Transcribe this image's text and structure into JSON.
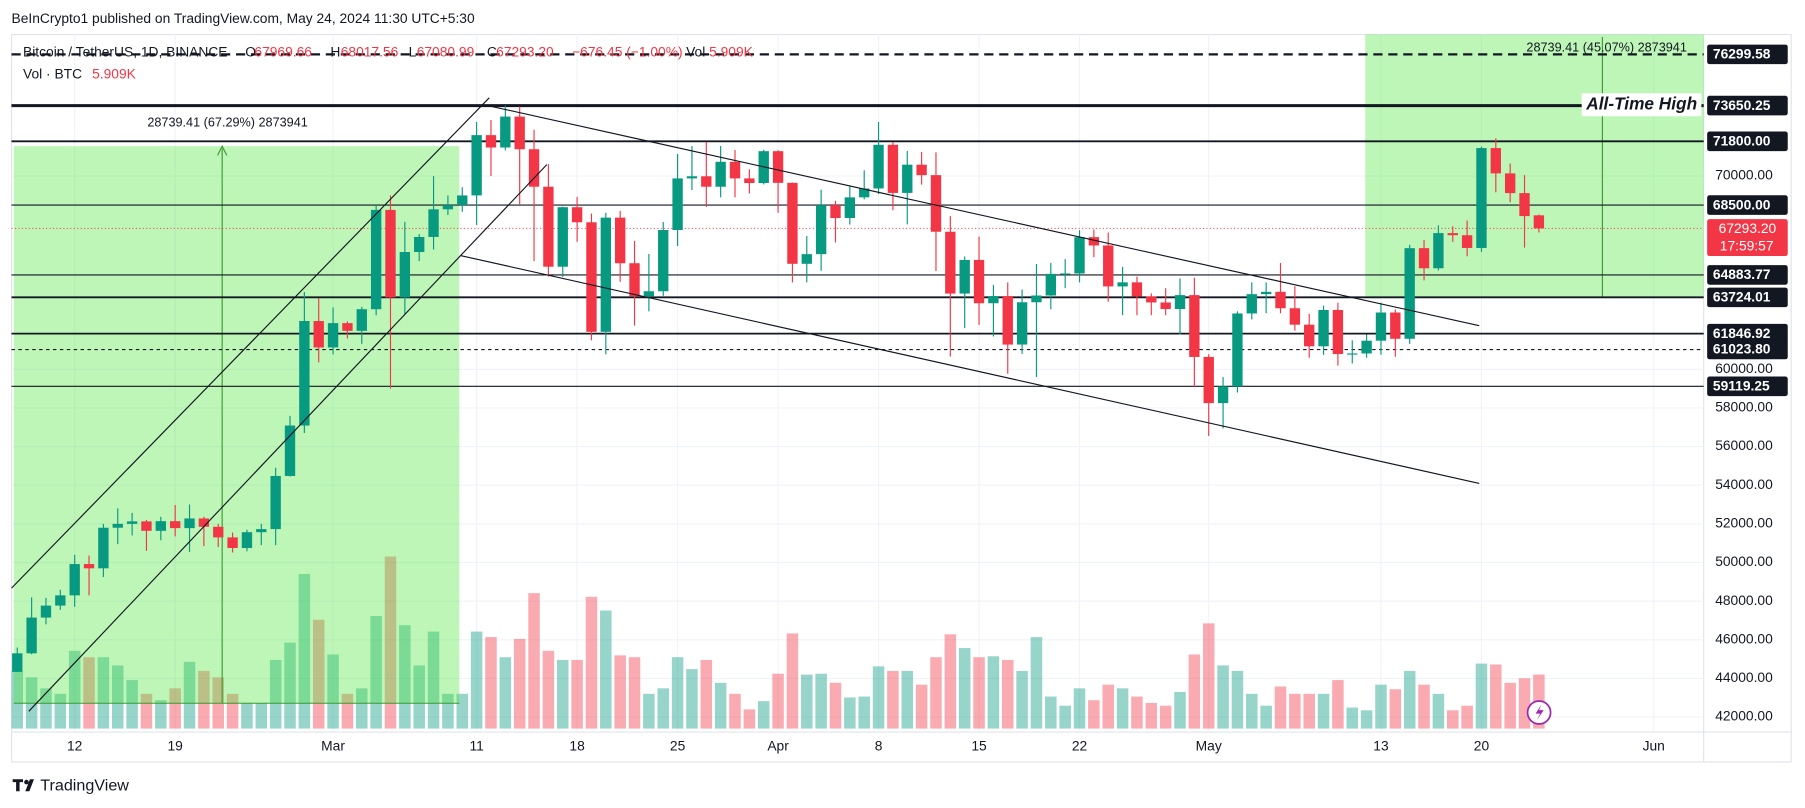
{
  "published": "BeInCrypto1 published on TradingView.com, May 24, 2024 11:30 UTC+5:30",
  "footer": "TradingView",
  "chart_data": {
    "type": "candlestick",
    "symbol": "Bitcoin / TetherUS, 1D, BINANCE",
    "legend": [
      {
        "key": "O",
        "text": "67969.66"
      },
      {
        "key": "H",
        "text": "68017.56"
      },
      {
        "key": "L",
        "text": "67080.99"
      },
      {
        "key": "C",
        "text": "67293.20"
      },
      {
        "key": "",
        "text": "−676.45 (−1.00%)"
      },
      {
        "key": "Vol",
        "text": "5.909K"
      }
    ],
    "volume_legend": {
      "key": "Vol · BTC",
      "text": "5.909K"
    },
    "up_color": "#089981",
    "down_color": "#f23645",
    "grid": true,
    "categories": [
      null,
      null,
      null,
      null,
      "12",
      null,
      null,
      null,
      null,
      null,
      null,
      "19",
      null,
      null,
      null,
      null,
      null,
      null,
      null,
      null,
      null,
      null,
      "Mar",
      null,
      null,
      null,
      null,
      null,
      null,
      null,
      null,
      null,
      "11",
      null,
      null,
      null,
      null,
      null,
      null,
      "18",
      null,
      null,
      null,
      null,
      null,
      null,
      "25",
      null,
      null,
      null,
      null,
      null,
      null,
      "Apr",
      null,
      null,
      null,
      null,
      null,
      null,
      "8",
      null,
      null,
      null,
      null,
      null,
      null,
      "15",
      null,
      null,
      null,
      null,
      null,
      null,
      "22",
      null,
      null,
      null,
      null,
      null,
      null,
      null,
      null,
      "May",
      null,
      null,
      null,
      null,
      null,
      null,
      null,
      null,
      null,
      null,
      null,
      "13",
      null,
      null,
      null,
      null,
      null,
      null,
      "20",
      null,
      null,
      null,
      null,
      null,
      null,
      null,
      null,
      null,
      null,
      null,
      "Jun"
    ],
    "open": [
      44340,
      45300,
      47150,
      47770,
      48300,
      49920,
      49700,
      51800,
      52000,
      52130,
      51640,
      52140,
      51780,
      52280,
      51850,
      51300,
      50750,
      51570,
      51730,
      54480,
      57090,
      62500,
      61130,
      62390,
      61990,
      63110,
      68250,
      63720,
      66070,
      66850,
      68280,
      68500,
      69000,
      72120,
      71480,
      73080,
      71390,
      69450,
      65310,
      68390,
      67610,
      61940,
      67850,
      65490,
      63780,
      64040,
      67210,
      69880,
      69990,
      69450,
      70740,
      69880,
      69640,
      71290,
      69650,
      65460,
      65960,
      68500,
      67830,
      68900,
      69360,
      71620,
      69130,
      70590,
      70050,
      67120,
      63920,
      65660,
      63420,
      63790,
      61280,
      63470,
      63820,
      64940,
      64960,
      66840,
      66410,
      64290,
      64500,
      63770,
      63460,
      63120,
      63840,
      60640,
      58250,
      59120,
      62890,
      63890,
      64010,
      63160,
      62310,
      61190,
      63070,
      60790,
      60820,
      61480,
      62940,
      61580,
      66270,
      65230,
      67050,
      66940,
      66280,
      71450,
      70140,
      69120,
      67969.66,
      null,
      null,
      null,
      null,
      null,
      null,
      null,
      null
    ],
    "high": [
      45600,
      48200,
      48170,
      48590,
      50400,
      50360,
      52000,
      52800,
      52570,
      52200,
      52370,
      52980,
      53000,
      52370,
      52000,
      51550,
      51700,
      52000,
      54910,
      57590,
      64000,
      63680,
      63200,
      62480,
      63230,
      68500,
      69000,
      67630,
      67000,
      70000,
      69000,
      69420,
      72800,
      72900,
      73650,
      73600,
      72400,
      70620,
      68420,
      68920,
      68060,
      68100,
      68200,
      66650,
      65970,
      67630,
      71150,
      71550,
      71770,
      71560,
      71350,
      70350,
      71360,
      71340,
      69670,
      66900,
      69300,
      68720,
      69500,
      70300,
      72800,
      71760,
      71300,
      71250,
      71230,
      67930,
      65840,
      66870,
      64370,
      64500,
      64130,
      65450,
      65500,
      65700,
      67200,
      67230,
      67080,
      65300,
      64800,
      63930,
      64200,
      64700,
      64740,
      60780,
      59600,
      63000,
      64500,
      64500,
      65500,
      64300,
      62870,
      63300,
      63450,
      61500,
      61800,
      63450,
      63100,
      66450,
      66700,
      67450,
      67400,
      67700,
      71520,
      71950,
      70650,
      70050,
      68017.56,
      null,
      null,
      null,
      null,
      null,
      null,
      null,
      null
    ],
    "low": [
      44330,
      45250,
      46800,
      47550,
      47710,
      48300,
      49250,
      50950,
      51400,
      50600,
      51150,
      51350,
      50550,
      50850,
      50800,
      50520,
      50580,
      50900,
      50900,
      54450,
      56700,
      60360,
      60770,
      61600,
      61320,
      62800,
      59000,
      62850,
      65600,
      66200,
      67980,
      68150,
      67470,
      70000,
      71330,
      68550,
      65600,
      64800,
      64780,
      66600,
      61500,
      60770,
      64530,
      62260,
      63000,
      63800,
      66380,
      69280,
      68400,
      68900,
      68900,
      69100,
      69570,
      68100,
      64500,
      64500,
      65100,
      66570,
      67490,
      68800,
      69070,
      68230,
      67500,
      69560,
      65090,
      60660,
      62130,
      62300,
      61700,
      59770,
      60800,
      59600,
      63100,
      64200,
      64500,
      65800,
      63500,
      62800,
      62800,
      62800,
      62800,
      61800,
      59100,
      56550,
      56940,
      58800,
      62580,
      62900,
      62900,
      62000,
      60600,
      60750,
      60190,
      60300,
      60600,
      60750,
      60650,
      61320,
      64600,
      65120,
      66600,
      65850,
      66080,
      69160,
      68650,
      66300,
      67080.99,
      null,
      null,
      null,
      null,
      null,
      null,
      null,
      null
    ],
    "close": [
      45300,
      47150,
      47770,
      48300,
      49920,
      49700,
      51800,
      52000,
      52130,
      51640,
      52140,
      51780,
      52280,
      51850,
      51300,
      50750,
      51570,
      51730,
      54480,
      57090,
      62500,
      61130,
      62390,
      61990,
      63110,
      68250,
      63720,
      66070,
      66850,
      68280,
      68500,
      69000,
      72120,
      71480,
      73080,
      71390,
      69450,
      65310,
      68390,
      67610,
      61940,
      67850,
      65490,
      63780,
      64040,
      67210,
      69880,
      69990,
      69450,
      70740,
      69880,
      69640,
      71290,
      69650,
      65460,
      65960,
      68500,
      67830,
      68900,
      69360,
      71620,
      69130,
      70590,
      70050,
      67120,
      63920,
      65660,
      63420,
      63790,
      61280,
      63470,
      63820,
      64940,
      64960,
      66840,
      66410,
      64290,
      64500,
      63770,
      63460,
      63120,
      63840,
      60640,
      58250,
      59120,
      62890,
      63890,
      64010,
      63160,
      62310,
      61190,
      63070,
      60790,
      60820,
      61480,
      62940,
      61580,
      66270,
      65230,
      67050,
      66940,
      66280,
      71450,
      70140,
      69120,
      67930,
      67293.2,
      null,
      null,
      null,
      null,
      null,
      null,
      null,
      null
    ],
    "volume": [
      6.3,
      5.6,
      4.4,
      3.8,
      8.5,
      7.8,
      7.8,
      6.9,
      5.3,
      3.8,
      3.1,
      4.4,
      7.3,
      6.3,
      5.6,
      3.8,
      2.8,
      2.8,
      7.5,
      9.4,
      16.9,
      11.9,
      8.1,
      3.8,
      4.4,
      12.3,
      18.8,
      11.3,
      6.9,
      10.6,
      3.8,
      3.8,
      10.6,
      10,
      7.8,
      9.8,
      14.8,
      8.5,
      7.5,
      7.5,
      14.4,
      12.9,
      8,
      7.8,
      3.8,
      4.4,
      7.8,
      6.5,
      7.5,
      5,
      3.8,
      2.1,
      3,
      6,
      10.4,
      5.9,
      6,
      5,
      3.4,
      3.5,
      6.8,
      6.3,
      6.3,
      4.8,
      7.8,
      10.3,
      8.8,
      7.8,
      7.9,
      7.5,
      6.3,
      10,
      3.5,
      2.5,
      4.4,
      3.1,
      4.8,
      4.4,
      3.5,
      2.8,
      2.5,
      4,
      8.1,
      11.5,
      6.9,
      6.3,
      3.8,
      2.5,
      4.6,
      3.8,
      3.8,
      3.8,
      5.3,
      2.3,
      2,
      4.8,
      4.3,
      6.3,
      4.8,
      3.8,
      2,
      2.5,
      7.1,
      7,
      5,
      5.5,
      5.909,
      null,
      null,
      null,
      null,
      null,
      null,
      null,
      null
    ],
    "ylim": [
      41226,
      77327
    ],
    "yticks": [
      {
        "value": 42000,
        "label": "42000.00"
      },
      {
        "value": 44000,
        "label": "44000.00"
      },
      {
        "value": 46000,
        "label": "46000.00"
      },
      {
        "value": 48000,
        "label": "48000.00"
      },
      {
        "value": 50000,
        "label": "50000.00"
      },
      {
        "value": 52000,
        "label": "52000.00"
      },
      {
        "value": 54000,
        "label": "54000.00"
      },
      {
        "value": 56000,
        "label": "56000.00"
      },
      {
        "value": 58000,
        "label": "58000.00"
      },
      {
        "value": 60000,
        "label": "60000.00"
      },
      {
        "value": 70000,
        "label": "70000.00"
      }
    ],
    "levels": [
      {
        "value": 76299.58,
        "label": "76299.58",
        "style": "dashed"
      },
      {
        "value": 73650.25,
        "label": "73650.25",
        "style": "bold"
      },
      {
        "value": 71800,
        "label": "71800.00",
        "style": "solid"
      },
      {
        "value": 68500,
        "label": "68500.00",
        "style": "thin"
      },
      {
        "value": 64883.77,
        "label": "64883.77",
        "style": "thin"
      },
      {
        "value": 63724.01,
        "label": "63724.01",
        "style": "solid"
      },
      {
        "value": 61846.92,
        "label": "61846.92",
        "style": "solid"
      },
      {
        "value": 61023.8,
        "label": "61023.80",
        "style": "dotted"
      },
      {
        "value": 59119.25,
        "label": "59119.25",
        "style": "thin"
      }
    ],
    "last_price": {
      "value": 67293.2,
      "label": "67293.20",
      "countdown": "17:59:57"
    },
    "annotation": "All-Time High",
    "measures": [
      "28739.41 (67.29%) 2873941",
      "28739.41 (45.07%) 2873941"
    ]
  }
}
